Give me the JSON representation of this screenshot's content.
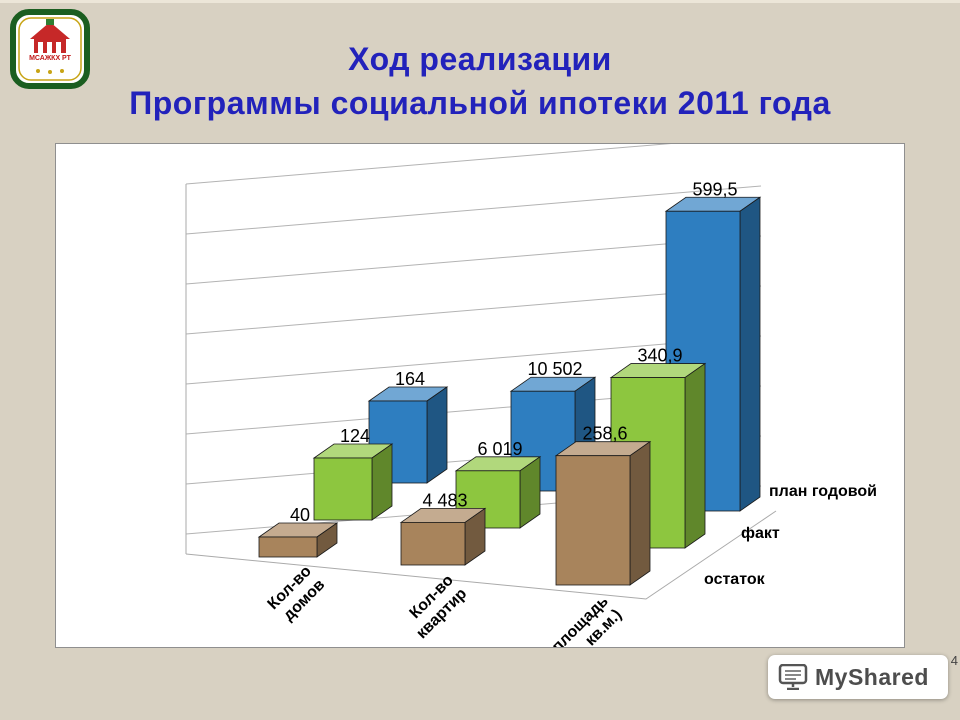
{
  "slide": {
    "title_line1": "Ход реализации",
    "title_line2": "Программы социальной ипотеки 2011 года",
    "page_number": "4",
    "watermark_text": "MyShared",
    "logo_text": "МСАЖКХ РТ"
  },
  "chart_data": {
    "type": "bar",
    "projection": "3d",
    "title": "Ход реализации Программы социальной ипотеки 2011 года",
    "categories": [
      "Кол-во домов",
      "Кол-во квартир",
      "Общая площадь (тыс. кв.м.)"
    ],
    "category_lines": [
      [
        "Кол-во",
        "домов"
      ],
      [
        "Кол-во",
        "квартир"
      ],
      [
        "Общая площадь",
        "(тыс. кв.м.)"
      ]
    ],
    "series": [
      {
        "name": "остаток",
        "color": "#A8845C",
        "values": [
          40,
          4483,
          258.6
        ],
        "labels": [
          "40",
          "4 483",
          "258,6"
        ]
      },
      {
        "name": "факт",
        "color": "#8DC63F",
        "values": [
          124,
          6019,
          340.9
        ],
        "labels": [
          "124",
          "6 019",
          "340,9"
        ]
      },
      {
        "name": "план годовой",
        "color": "#2E7EC0",
        "values": [
          164,
          10502,
          599.5
        ],
        "labels": [
          "164",
          "10 502",
          "599,5"
        ]
      }
    ],
    "series_order": "front-to-back",
    "value_labels": true,
    "grid": true,
    "legend_position": "depth-axis-right"
  }
}
